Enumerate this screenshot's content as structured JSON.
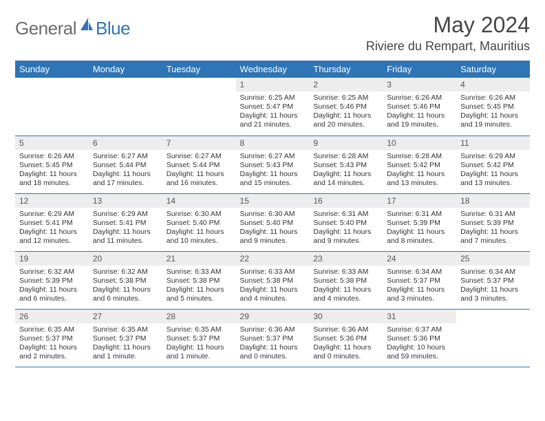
{
  "logo": {
    "general": "General",
    "blue": "Blue"
  },
  "title": "May 2024",
  "location": "Riviere du Rempart, Mauritius",
  "colors": {
    "accent": "#2f74b5",
    "headerText": "#ffffff",
    "dayBg": "#ededed",
    "border": "#2f74b5"
  },
  "weekdays": [
    "Sunday",
    "Monday",
    "Tuesday",
    "Wednesday",
    "Thursday",
    "Friday",
    "Saturday"
  ],
  "weeks": [
    [
      {
        "day": "",
        "sunrise": "",
        "sunset": "",
        "daylight": ""
      },
      {
        "day": "",
        "sunrise": "",
        "sunset": "",
        "daylight": ""
      },
      {
        "day": "",
        "sunrise": "",
        "sunset": "",
        "daylight": ""
      },
      {
        "day": "1",
        "sunrise": "Sunrise: 6:25 AM",
        "sunset": "Sunset: 5:47 PM",
        "daylight": "Daylight: 11 hours and 21 minutes."
      },
      {
        "day": "2",
        "sunrise": "Sunrise: 6:25 AM",
        "sunset": "Sunset: 5:46 PM",
        "daylight": "Daylight: 11 hours and 20 minutes."
      },
      {
        "day": "3",
        "sunrise": "Sunrise: 6:26 AM",
        "sunset": "Sunset: 5:46 PM",
        "daylight": "Daylight: 11 hours and 19 minutes."
      },
      {
        "day": "4",
        "sunrise": "Sunrise: 6:26 AM",
        "sunset": "Sunset: 5:45 PM",
        "daylight": "Daylight: 11 hours and 19 minutes."
      }
    ],
    [
      {
        "day": "5",
        "sunrise": "Sunrise: 6:26 AM",
        "sunset": "Sunset: 5:45 PM",
        "daylight": "Daylight: 11 hours and 18 minutes."
      },
      {
        "day": "6",
        "sunrise": "Sunrise: 6:27 AM",
        "sunset": "Sunset: 5:44 PM",
        "daylight": "Daylight: 11 hours and 17 minutes."
      },
      {
        "day": "7",
        "sunrise": "Sunrise: 6:27 AM",
        "sunset": "Sunset: 5:44 PM",
        "daylight": "Daylight: 11 hours and 16 minutes."
      },
      {
        "day": "8",
        "sunrise": "Sunrise: 6:27 AM",
        "sunset": "Sunset: 5:43 PM",
        "daylight": "Daylight: 11 hours and 15 minutes."
      },
      {
        "day": "9",
        "sunrise": "Sunrise: 6:28 AM",
        "sunset": "Sunset: 5:43 PM",
        "daylight": "Daylight: 11 hours and 14 minutes."
      },
      {
        "day": "10",
        "sunrise": "Sunrise: 6:28 AM",
        "sunset": "Sunset: 5:42 PM",
        "daylight": "Daylight: 11 hours and 13 minutes."
      },
      {
        "day": "11",
        "sunrise": "Sunrise: 6:29 AM",
        "sunset": "Sunset: 5:42 PM",
        "daylight": "Daylight: 11 hours and 13 minutes."
      }
    ],
    [
      {
        "day": "12",
        "sunrise": "Sunrise: 6:29 AM",
        "sunset": "Sunset: 5:41 PM",
        "daylight": "Daylight: 11 hours and 12 minutes."
      },
      {
        "day": "13",
        "sunrise": "Sunrise: 6:29 AM",
        "sunset": "Sunset: 5:41 PM",
        "daylight": "Daylight: 11 hours and 11 minutes."
      },
      {
        "day": "14",
        "sunrise": "Sunrise: 6:30 AM",
        "sunset": "Sunset: 5:40 PM",
        "daylight": "Daylight: 11 hours and 10 minutes."
      },
      {
        "day": "15",
        "sunrise": "Sunrise: 6:30 AM",
        "sunset": "Sunset: 5:40 PM",
        "daylight": "Daylight: 11 hours and 9 minutes."
      },
      {
        "day": "16",
        "sunrise": "Sunrise: 6:31 AM",
        "sunset": "Sunset: 5:40 PM",
        "daylight": "Daylight: 11 hours and 9 minutes."
      },
      {
        "day": "17",
        "sunrise": "Sunrise: 6:31 AM",
        "sunset": "Sunset: 5:39 PM",
        "daylight": "Daylight: 11 hours and 8 minutes."
      },
      {
        "day": "18",
        "sunrise": "Sunrise: 6:31 AM",
        "sunset": "Sunset: 5:39 PM",
        "daylight": "Daylight: 11 hours and 7 minutes."
      }
    ],
    [
      {
        "day": "19",
        "sunrise": "Sunrise: 6:32 AM",
        "sunset": "Sunset: 5:39 PM",
        "daylight": "Daylight: 11 hours and 6 minutes."
      },
      {
        "day": "20",
        "sunrise": "Sunrise: 6:32 AM",
        "sunset": "Sunset: 5:38 PM",
        "daylight": "Daylight: 11 hours and 6 minutes."
      },
      {
        "day": "21",
        "sunrise": "Sunrise: 6:33 AM",
        "sunset": "Sunset: 5:38 PM",
        "daylight": "Daylight: 11 hours and 5 minutes."
      },
      {
        "day": "22",
        "sunrise": "Sunrise: 6:33 AM",
        "sunset": "Sunset: 5:38 PM",
        "daylight": "Daylight: 11 hours and 4 minutes."
      },
      {
        "day": "23",
        "sunrise": "Sunrise: 6:33 AM",
        "sunset": "Sunset: 5:38 PM",
        "daylight": "Daylight: 11 hours and 4 minutes."
      },
      {
        "day": "24",
        "sunrise": "Sunrise: 6:34 AM",
        "sunset": "Sunset: 5:37 PM",
        "daylight": "Daylight: 11 hours and 3 minutes."
      },
      {
        "day": "25",
        "sunrise": "Sunrise: 6:34 AM",
        "sunset": "Sunset: 5:37 PM",
        "daylight": "Daylight: 11 hours and 3 minutes."
      }
    ],
    [
      {
        "day": "26",
        "sunrise": "Sunrise: 6:35 AM",
        "sunset": "Sunset: 5:37 PM",
        "daylight": "Daylight: 11 hours and 2 minutes."
      },
      {
        "day": "27",
        "sunrise": "Sunrise: 6:35 AM",
        "sunset": "Sunset: 5:37 PM",
        "daylight": "Daylight: 11 hours and 1 minute."
      },
      {
        "day": "28",
        "sunrise": "Sunrise: 6:35 AM",
        "sunset": "Sunset: 5:37 PM",
        "daylight": "Daylight: 11 hours and 1 minute."
      },
      {
        "day": "29",
        "sunrise": "Sunrise: 6:36 AM",
        "sunset": "Sunset: 5:37 PM",
        "daylight": "Daylight: 11 hours and 0 minutes."
      },
      {
        "day": "30",
        "sunrise": "Sunrise: 6:36 AM",
        "sunset": "Sunset: 5:36 PM",
        "daylight": "Daylight: 11 hours and 0 minutes."
      },
      {
        "day": "31",
        "sunrise": "Sunrise: 6:37 AM",
        "sunset": "Sunset: 5:36 PM",
        "daylight": "Daylight: 10 hours and 59 minutes."
      },
      {
        "day": "",
        "sunrise": "",
        "sunset": "",
        "daylight": ""
      }
    ]
  ]
}
